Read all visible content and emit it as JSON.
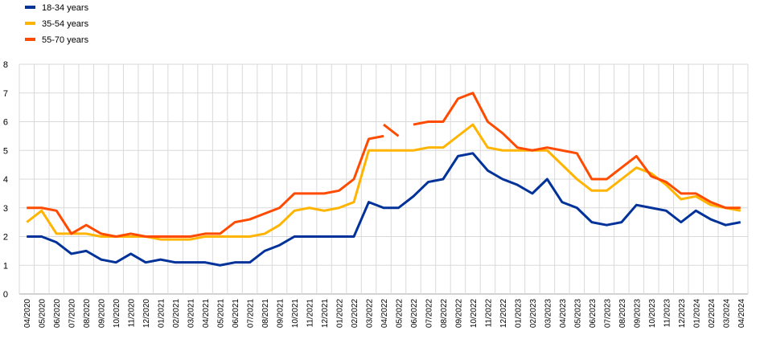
{
  "chart_data": {
    "type": "line",
    "title": "",
    "xlabel": "",
    "ylabel": "",
    "ylim": [
      0,
      8
    ],
    "yticks": [
      0,
      1,
      2,
      3,
      4,
      5,
      6,
      7,
      8
    ],
    "grid": true,
    "legend_position": "top-left",
    "categories": [
      "04/2020",
      "05/2020",
      "06/2020",
      "07/2020",
      "08/2020",
      "09/2020",
      "10/2020",
      "11/2020",
      "12/2020",
      "01/2021",
      "02/2021",
      "03/2021",
      "04/2021",
      "05/2021",
      "06/2021",
      "07/2021",
      "08/2021",
      "09/2021",
      "10/2021",
      "11/2021",
      "12/2021",
      "01/2022",
      "02/2022",
      "03/2022",
      "04/2022",
      "05/2022",
      "06/2022",
      "07/2022",
      "08/2022",
      "09/2022",
      "10/2022",
      "11/2022",
      "12/2022",
      "01/2023",
      "02/2023",
      "03/2023",
      "04/2023",
      "05/2023",
      "06/2023",
      "07/2023",
      "08/2023",
      "09/2023",
      "10/2023",
      "11/2023",
      "12/2023",
      "01/2024",
      "02/2024",
      "03/2024",
      "04/2024"
    ],
    "series": [
      {
        "name": "18-34 years",
        "color": "#003299",
        "values": [
          2.0,
          2.0,
          1.8,
          1.4,
          1.5,
          1.2,
          1.1,
          1.4,
          1.1,
          1.2,
          1.1,
          1.1,
          1.1,
          1.0,
          1.1,
          1.1,
          1.5,
          1.7,
          2.0,
          2.0,
          2.0,
          2.0,
          2.0,
          3.2,
          3.0,
          3.0,
          3.4,
          3.9,
          4.0,
          4.8,
          4.9,
          4.3,
          4.0,
          3.8,
          3.5,
          4.0,
          3.2,
          3.0,
          2.5,
          2.4,
          2.5,
          3.1,
          3.0,
          2.9,
          2.5,
          2.9,
          2.6,
          2.4,
          2.5
        ]
      },
      {
        "name": "35-54 years",
        "color": "#ffb400",
        "values": [
          2.5,
          2.9,
          2.1,
          2.1,
          2.1,
          2.0,
          2.0,
          2.0,
          2.0,
          1.9,
          1.9,
          1.9,
          2.0,
          2.0,
          2.0,
          2.0,
          2.1,
          2.4,
          2.9,
          3.0,
          2.9,
          3.0,
          3.2,
          5.0,
          5.0,
          5.0,
          5.0,
          5.1,
          5.1,
          5.5,
          5.9,
          5.1,
          5.0,
          5.0,
          5.0,
          5.0,
          4.5,
          4.0,
          3.6,
          3.6,
          4.0,
          4.4,
          4.2,
          3.8,
          3.3,
          3.4,
          3.1,
          3.0,
          2.9
        ]
      },
      {
        "name": "55-70 years",
        "color": "#ff4b00",
        "values": [
          3.0,
          3.0,
          2.9,
          2.1,
          2.4,
          2.1,
          2.0,
          2.1,
          2.0,
          2.0,
          2.0,
          2.0,
          2.1,
          2.1,
          2.5,
          2.6,
          2.8,
          3.0,
          3.5,
          3.5,
          3.5,
          3.6,
          4.0,
          5.4,
          5.5,
          null,
          5.9,
          6.0,
          6.0,
          6.8,
          7.0,
          6.0,
          5.6,
          5.1,
          5.0,
          5.1,
          5.0,
          4.9,
          4.0,
          4.0,
          4.4,
          4.8,
          4.1,
          3.9,
          3.5,
          3.5,
          3.2,
          3.0,
          3.0
        ],
        "gap_segment": {
          "from": 24,
          "to": 25,
          "points": [
            5.9,
            5.5
          ]
        }
      }
    ]
  }
}
